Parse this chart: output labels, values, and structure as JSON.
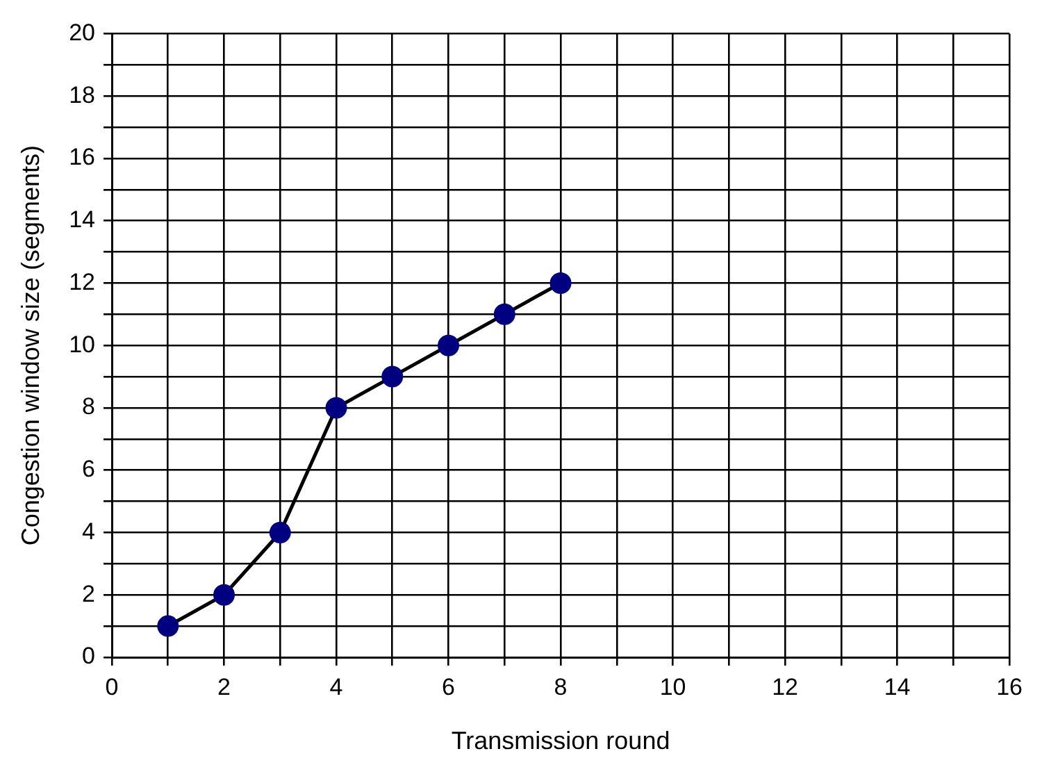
{
  "chart_data": {
    "type": "line",
    "xlabel": "Transmission round",
    "ylabel": "Congestion window size (segments)",
    "x": [
      1,
      2,
      3,
      4,
      5,
      6,
      7,
      8
    ],
    "series": [
      {
        "color": "#000080",
        "values": [
          1,
          2,
          4,
          8,
          9,
          10,
          11,
          12
        ]
      }
    ],
    "xlim": [
      0,
      16
    ],
    "xticks": [
      0,
      {
        "value": 1,
        "label": null
      },
      2,
      {
        "value": 3,
        "label": null
      },
      4,
      {
        "value": 5,
        "label": null
      },
      6,
      {
        "value": 7,
        "label": null
      },
      8,
      {
        "value": 9,
        "label": null
      },
      10,
      {
        "value": 11,
        "label": null
      },
      12,
      {
        "value": 13,
        "label": null
      },
      14,
      {
        "value": 15,
        "label": null
      },
      16
    ],
    "ylim": [
      0,
      20
    ],
    "yticks": [
      0,
      {
        "value": 1,
        "label": null
      },
      2,
      {
        "value": 3,
        "label": null
      },
      4,
      {
        "value": 5,
        "label": null
      },
      6,
      {
        "value": 7,
        "label": null
      },
      8,
      {
        "value": 9,
        "label": null
      },
      10,
      {
        "value": 11,
        "label": null
      },
      12,
      {
        "value": 13,
        "label": null
      },
      14,
      {
        "value": 15,
        "label": null
      },
      16,
      {
        "value": 17,
        "label": null
      },
      18,
      {
        "value": 19,
        "label": null
      },
      20
    ],
    "grid": true,
    "legend": false,
    "marker": "circle",
    "line_style": "solid"
  }
}
